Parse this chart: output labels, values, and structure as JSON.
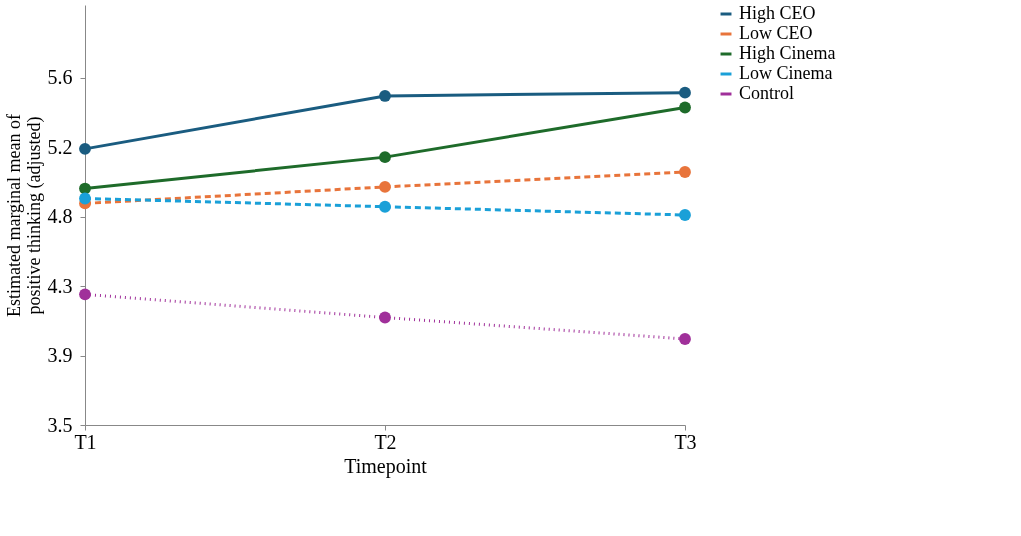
{
  "chart_data": {
    "type": "line",
    "xlabel": "Timepoint",
    "ylabel": "Estimated marginal mean of positive thinking (adjusted)",
    "categories": [
      "T1",
      "T2",
      "T3"
    ],
    "series": [
      {
        "name": "High CEO",
        "color": "#1a5c80",
        "line_style": "solid",
        "values": [
          5.17,
          5.49,
          5.51
        ]
      },
      {
        "name": "Low CEO",
        "color": "#e8743b",
        "line_style": "dashed",
        "values": [
          4.84,
          4.94,
          5.03
        ]
      },
      {
        "name": "High Cinema",
        "color": "#1e6b2a",
        "line_style": "solid",
        "values": [
          4.93,
          5.12,
          5.42
        ]
      },
      {
        "name": "Low Cinema",
        "color": "#1aa0d8",
        "line_style": "dashed",
        "values": [
          4.87,
          4.82,
          4.77
        ]
      },
      {
        "name": "Control",
        "color": "#a0309a",
        "line_style": "dotted",
        "values": [
          4.29,
          4.15,
          4.02
        ]
      }
    ],
    "ylim": [
      3.5,
      6.04
    ],
    "yticks": [
      {
        "value": 3.5,
        "label": "3.5"
      },
      {
        "value": 3.92,
        "label": "3.9"
      },
      {
        "value": 4.34,
        "label": "4.3"
      },
      {
        "value": 4.76,
        "label": "4.8"
      },
      {
        "value": 5.18,
        "label": "5.2"
      },
      {
        "value": 5.6,
        "label": "5.6"
      }
    ],
    "marker": "circle",
    "grid": false,
    "legend": "right"
  }
}
